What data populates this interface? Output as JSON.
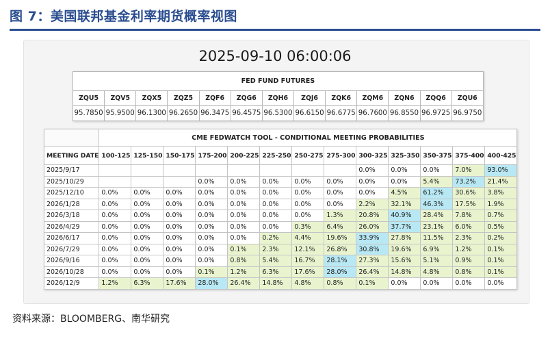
{
  "figure_title": "图 7：美国联邦基金利率期货概率视图",
  "timestamp": "2025-09-10 06:00:06",
  "futures": {
    "title": "FED FUND FUTURES",
    "contracts": [
      "ZQU5",
      "ZQV5",
      "ZQX5",
      "ZQZ5",
      "ZQF6",
      "ZQG6",
      "ZQH6",
      "ZQJ6",
      "ZQK6",
      "ZQM6",
      "ZQN6",
      "ZQQ6",
      "ZQU6"
    ],
    "prices": [
      "95.7850",
      "95.9500",
      "96.1300",
      "96.2650",
      "96.3475",
      "96.4575",
      "96.5300",
      "96.6150",
      "96.6775",
      "96.7600",
      "96.8550",
      "96.9725",
      "96.9750"
    ]
  },
  "probabilities": {
    "title": "CME FEDWATCH TOOL - CONDITIONAL MEETING PROBABILITIES",
    "row_header": "MEETING DATE",
    "ranges": [
      "100-125",
      "125-150",
      "150-175",
      "175-200",
      "200-225",
      "225-250",
      "250-275",
      "275-300",
      "300-325",
      "325-350",
      "350-375",
      "375-400",
      "400-425"
    ],
    "colors": {
      "highlight": "#b8e8f4",
      "nonzero": "#e9f4cf"
    },
    "rows": [
      {
        "date": "2025/9/17",
        "cells": [
          "",
          "",
          "",
          "",
          "",
          "",
          "",
          "",
          "0.0%",
          "0.0%",
          "0.0%",
          "7.0%",
          "93.0%"
        ],
        "hi": 12
      },
      {
        "date": "2025/10/29",
        "cells": [
          "",
          "",
          "",
          "0.0%",
          "0.0%",
          "0.0%",
          "0.0%",
          "0.0%",
          "0.0%",
          "0.0%",
          "5.4%",
          "73.2%",
          "21.4%"
        ],
        "hi": 11
      },
      {
        "date": "2025/12/10",
        "cells": [
          "0.0%",
          "0.0%",
          "0.0%",
          "0.0%",
          "0.0%",
          "0.0%",
          "0.0%",
          "0.0%",
          "0.0%",
          "4.5%",
          "61.2%",
          "30.6%",
          "3.8%"
        ],
        "hi": 10
      },
      {
        "date": "2026/1/28",
        "cells": [
          "0.0%",
          "0.0%",
          "0.0%",
          "0.0%",
          "0.0%",
          "0.0%",
          "0.0%",
          "0.0%",
          "2.2%",
          "32.1%",
          "46.3%",
          "17.5%",
          "1.9%"
        ],
        "hi": 10
      },
      {
        "date": "2026/3/18",
        "cells": [
          "0.0%",
          "0.0%",
          "0.0%",
          "0.0%",
          "0.0%",
          "0.0%",
          "0.0%",
          "1.3%",
          "20.8%",
          "40.9%",
          "28.4%",
          "7.8%",
          "0.7%"
        ],
        "hi": 9
      },
      {
        "date": "2026/4/29",
        "cells": [
          "0.0%",
          "0.0%",
          "0.0%",
          "0.0%",
          "0.0%",
          "0.0%",
          "0.3%",
          "6.4%",
          "26.0%",
          "37.7%",
          "23.1%",
          "6.0%",
          "0.5%"
        ],
        "hi": 9
      },
      {
        "date": "2026/6/17",
        "cells": [
          "0.0%",
          "0.0%",
          "0.0%",
          "0.0%",
          "0.0%",
          "0.2%",
          "4.4%",
          "19.6%",
          "33.9%",
          "27.8%",
          "11.5%",
          "2.3%",
          "0.2%"
        ],
        "hi": 8
      },
      {
        "date": "2026/7/29",
        "cells": [
          "0.0%",
          "0.0%",
          "0.0%",
          "0.0%",
          "0.1%",
          "2.3%",
          "12.1%",
          "26.8%",
          "30.8%",
          "19.6%",
          "6.9%",
          "1.2%",
          "0.1%"
        ],
        "hi": 8
      },
      {
        "date": "2026/9/16",
        "cells": [
          "0.0%",
          "0.0%",
          "0.0%",
          "0.0%",
          "0.8%",
          "5.4%",
          "16.7%",
          "28.1%",
          "27.3%",
          "15.6%",
          "5.1%",
          "0.9%",
          "0.1%"
        ],
        "hi": 7
      },
      {
        "date": "2026/10/28",
        "cells": [
          "0.0%",
          "0.0%",
          "0.0%",
          "0.1%",
          "1.2%",
          "6.3%",
          "17.6%",
          "28.0%",
          "26.4%",
          "14.8%",
          "4.8%",
          "0.8%",
          "0.1%"
        ],
        "hi": 7
      },
      {
        "date": "2026/12/9",
        "cells": [
          "1.2%",
          "6.3%",
          "17.6%",
          "28.0%",
          "26.4%",
          "14.8%",
          "4.8%",
          "0.8%",
          "0.1%",
          "0.0%",
          "0.0%",
          "0.0%",
          "0.0%"
        ],
        "hi": 3
      }
    ]
  },
  "source": "资料来源：BLOOMBERG、南华研究"
}
